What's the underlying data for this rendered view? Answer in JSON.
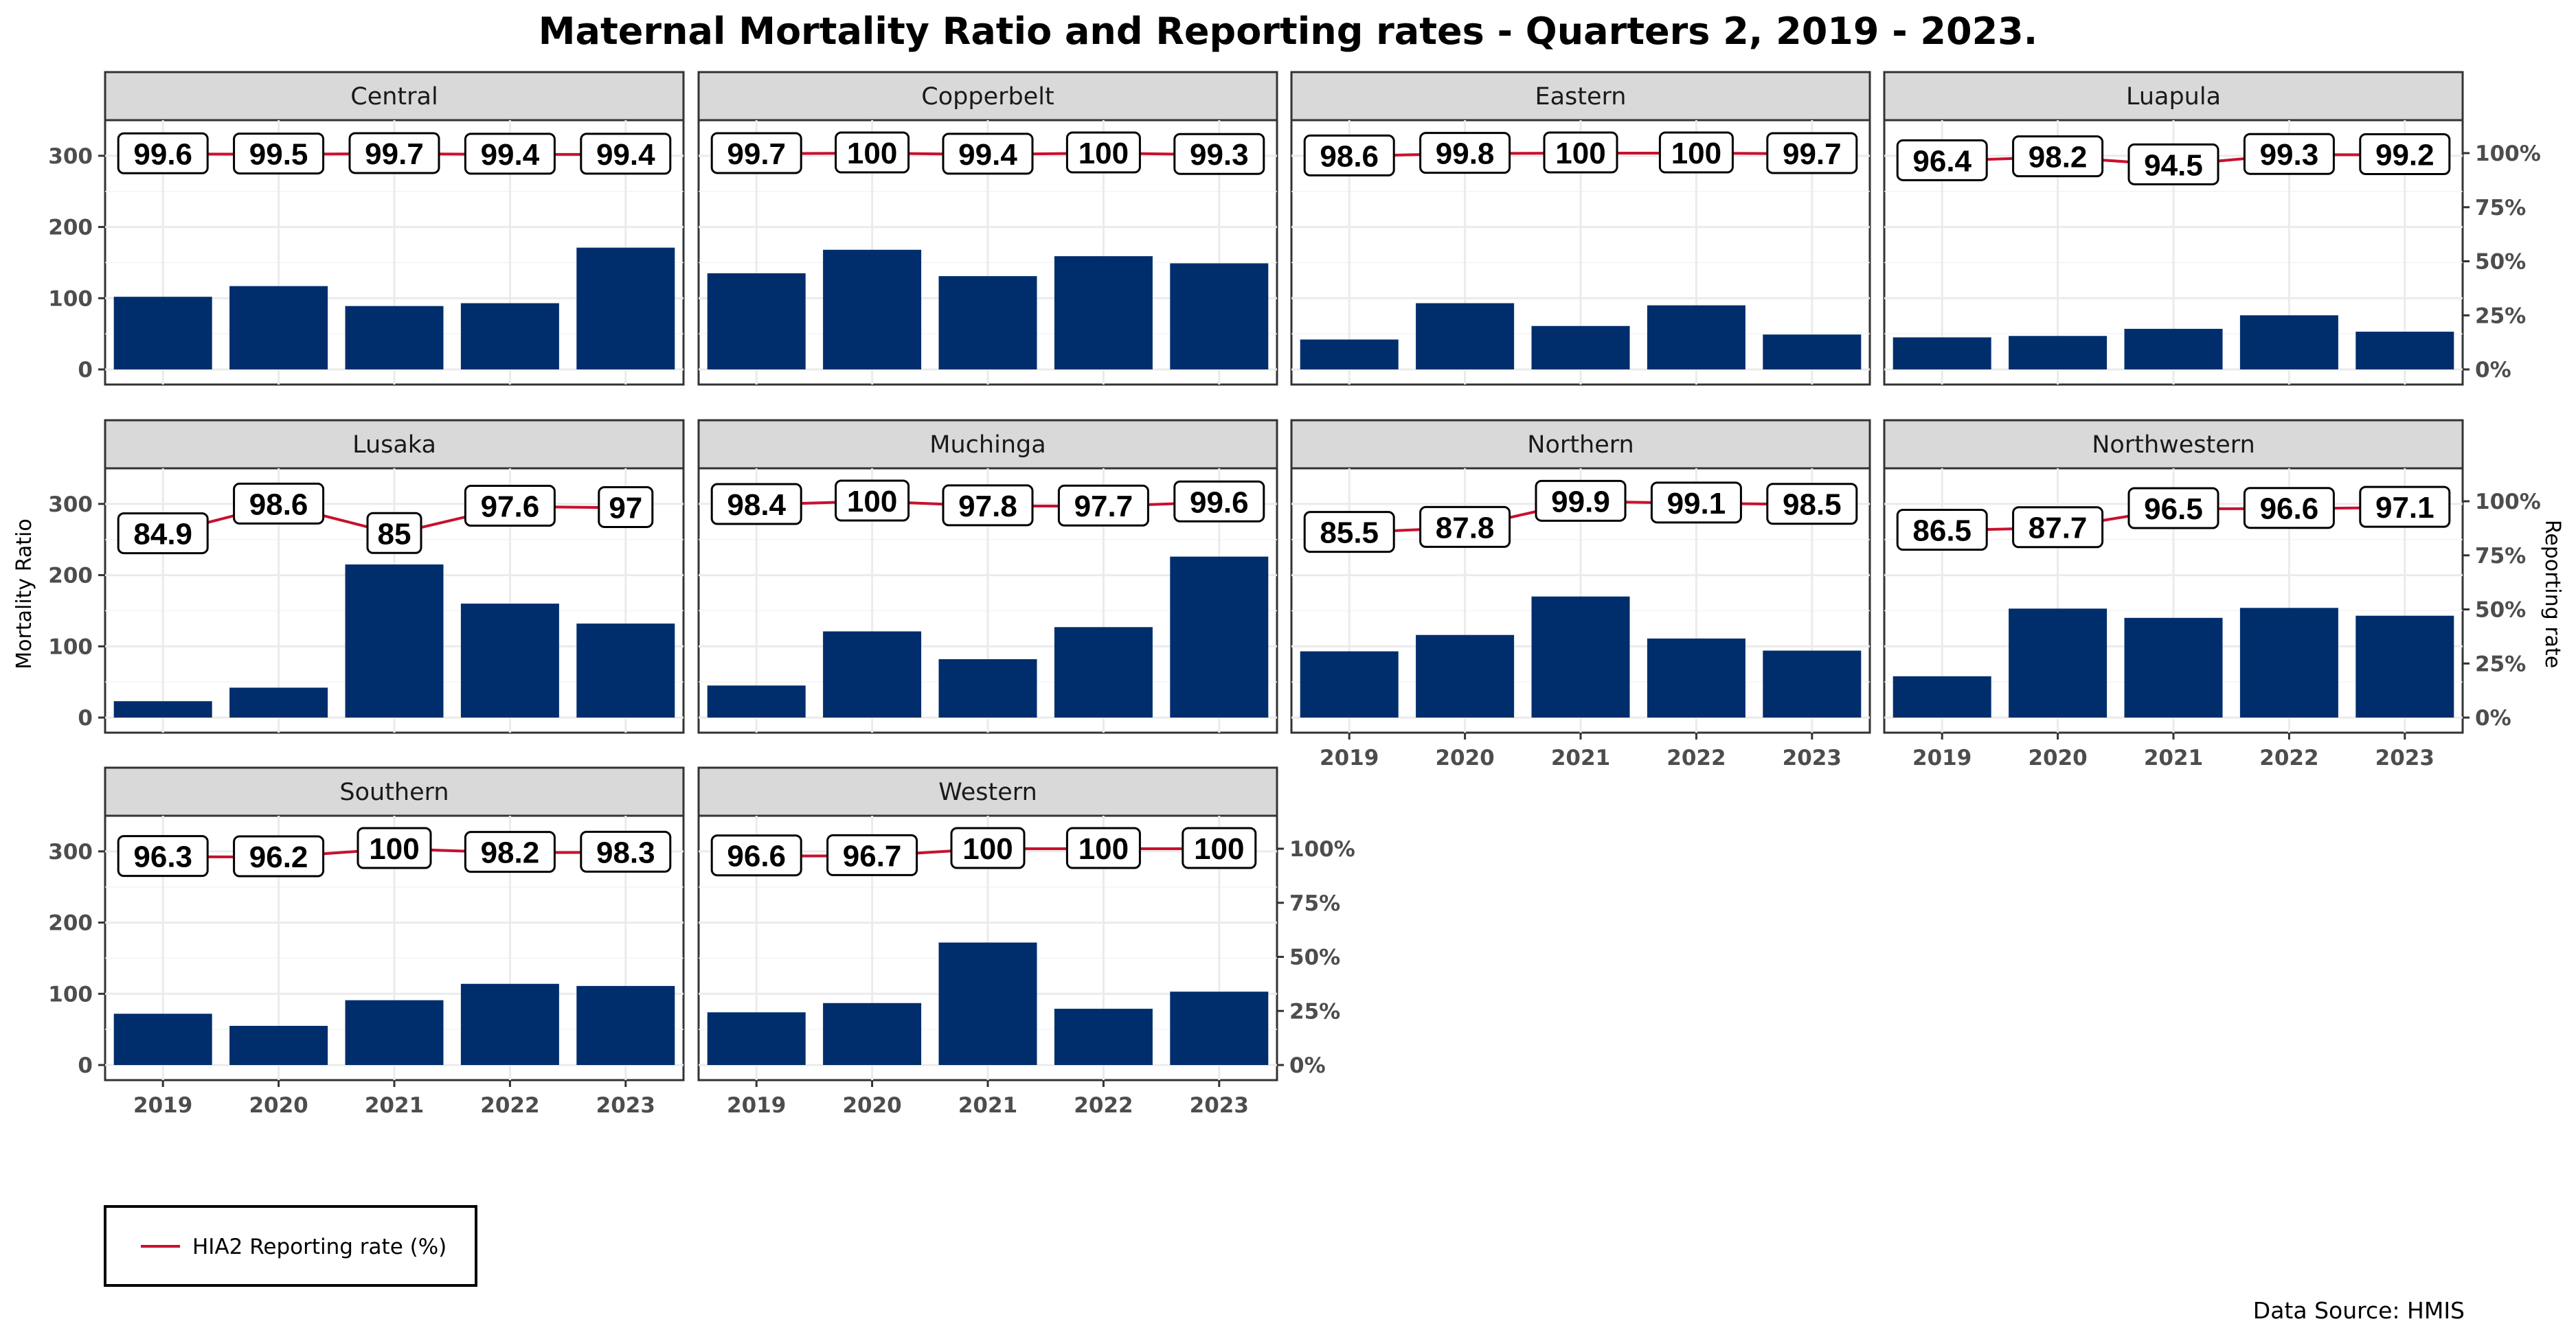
{
  "chart_data": {
    "type": "bar",
    "title": "Maternal Mortality Ratio and Reporting rates - Quarters 2, 2019 - 2023.",
    "ylabel": "Mortality Ratio",
    "y2label": "Reporting rate",
    "ylim": [
      0,
      350
    ],
    "y_ticks": [
      "0",
      "100",
      "200",
      "300"
    ],
    "y2_ticks": [
      "0%",
      "25%",
      "50%",
      "75%",
      "100%"
    ],
    "categories": [
      "2019",
      "2020",
      "2021",
      "2022",
      "2023"
    ],
    "grid": true,
    "legend": {
      "label": "HIA2 Reporting rate (%)",
      "position": "bottom-left",
      "color": "#c8102e"
    },
    "source": "Data Source: HMIS",
    "colors": {
      "bar": "#002e6d",
      "line": "#c8102e",
      "strip": "#d9d9d9"
    },
    "panels": [
      {
        "name": "Central",
        "mortality": [
          102,
          117,
          89,
          93,
          171
        ],
        "reporting": [
          99.6,
          99.5,
          99.7,
          99.4,
          99.4
        ],
        "reporting_labels": [
          "99.6",
          "99.5",
          "99.7",
          "99.4",
          "99.4"
        ]
      },
      {
        "name": "Copperbelt",
        "mortality": [
          135,
          168,
          131,
          159,
          149
        ],
        "reporting": [
          99.7,
          100,
          99.4,
          100,
          99.3
        ],
        "reporting_labels": [
          "99.7",
          "100",
          "99.4",
          "100",
          "99.3"
        ]
      },
      {
        "name": "Eastern",
        "mortality": [
          42,
          93,
          61,
          90,
          49
        ],
        "reporting": [
          98.6,
          99.8,
          100,
          100,
          99.7
        ],
        "reporting_labels": [
          "98.6",
          "99.8",
          "100",
          "100",
          "99.7"
        ]
      },
      {
        "name": "Luapula",
        "mortality": [
          45,
          47,
          57,
          76,
          53
        ],
        "reporting": [
          96.4,
          98.2,
          94.5,
          99.3,
          99.2
        ],
        "reporting_labels": [
          "96.4",
          "98.2",
          "94.5",
          "99.3",
          "99.2"
        ]
      },
      {
        "name": "Lusaka",
        "mortality": [
          23,
          42,
          215,
          160,
          132
        ],
        "reporting": [
          84.9,
          98.6,
          85,
          97.6,
          97
        ],
        "reporting_labels": [
          "84.9",
          "98.6",
          "85",
          "97.6",
          "97"
        ]
      },
      {
        "name": "Muchinga",
        "mortality": [
          45,
          121,
          82,
          127,
          226
        ],
        "reporting": [
          98.4,
          100,
          97.8,
          97.7,
          99.6
        ],
        "reporting_labels": [
          "98.4",
          "100",
          "97.8",
          "97.7",
          "99.6"
        ]
      },
      {
        "name": "Northern",
        "mortality": [
          93,
          116,
          170,
          111,
          94
        ],
        "reporting": [
          85.5,
          87.8,
          99.9,
          99.1,
          98.5
        ],
        "reporting_labels": [
          "85.5",
          "87.8",
          "99.9",
          "99.1",
          "98.5"
        ]
      },
      {
        "name": "Northwestern",
        "mortality": [
          58,
          153,
          140,
          154,
          143
        ],
        "reporting": [
          86.5,
          87.7,
          96.5,
          96.6,
          97.1
        ],
        "reporting_labels": [
          "86.5",
          "87.7",
          "96.5",
          "96.6",
          "97.1"
        ]
      },
      {
        "name": "Southern",
        "mortality": [
          72,
          55,
          91,
          114,
          111
        ],
        "reporting": [
          96.3,
          96.2,
          100,
          98.2,
          98.3
        ],
        "reporting_labels": [
          "96.3",
          "96.2",
          "100",
          "98.2",
          "98.3"
        ]
      },
      {
        "name": "Western",
        "mortality": [
          74,
          87,
          172,
          79,
          103
        ],
        "reporting": [
          96.6,
          96.7,
          100,
          100,
          100
        ],
        "reporting_labels": [
          "96.6",
          "96.7",
          "100",
          "100",
          "100"
        ]
      }
    ]
  }
}
